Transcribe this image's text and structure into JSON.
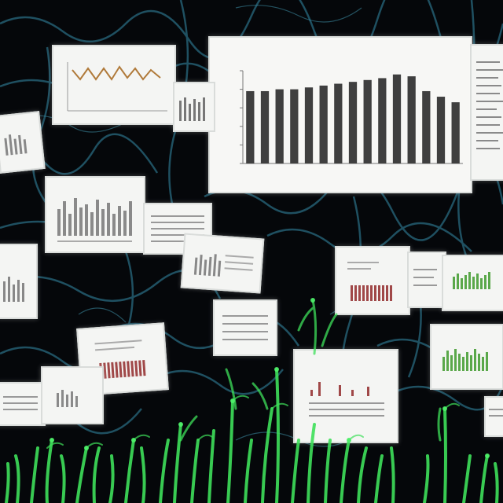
{
  "scene": {
    "background_color": "#05070a",
    "vein_color": "#2a6f86",
    "plant_color": "#3ee05a"
  },
  "main_chart": {
    "title": "",
    "xlabel": "",
    "chart_data": {
      "type": "bar",
      "categories": [
        "",
        "",
        "",
        "",
        "",
        "",
        "",
        "",
        "",
        "",
        "",
        "",
        "",
        "",
        ""
      ],
      "values": [
        78,
        78,
        80,
        80,
        82,
        84,
        86,
        88,
        90,
        92,
        96,
        94,
        78,
        72,
        66
      ],
      "bar_color": "#3f3f3f",
      "ylim": [
        0,
        100
      ]
    }
  },
  "cards": [
    {
      "name": "card-top-left-line-chart",
      "kind": "line",
      "color": "#b07a3a"
    },
    {
      "name": "card-small-bars-1",
      "kind": "bars",
      "color": "#777777"
    },
    {
      "name": "card-left-edge-1",
      "kind": "bars",
      "color": "#888888"
    },
    {
      "name": "card-mid-left-bars",
      "kind": "bars",
      "color": "#8a8a8a"
    },
    {
      "name": "card-mid-table",
      "kind": "table",
      "color": "#999999"
    },
    {
      "name": "card-tilted-bars",
      "kind": "bars",
      "color": "#888888"
    },
    {
      "name": "card-left-edge-2",
      "kind": "bars",
      "color": "#888888"
    },
    {
      "name": "card-red-bars-right",
      "kind": "bars",
      "color": "#a04848"
    },
    {
      "name": "card-green-bars-right",
      "kind": "bars",
      "color": "#5aa84a"
    },
    {
      "name": "card-center-small",
      "kind": "table",
      "color": "#999999"
    },
    {
      "name": "card-red-bars-left",
      "kind": "bars",
      "color": "#a04848"
    },
    {
      "name": "card-bottom-center",
      "kind": "sparse",
      "color": "#a04848"
    },
    {
      "name": "card-green-bars-lower",
      "kind": "bars",
      "color": "#5aa84a"
    },
    {
      "name": "card-bottom-left-1",
      "kind": "table",
      "color": "#999999"
    },
    {
      "name": "card-bottom-left-2",
      "kind": "bars",
      "color": "#8a8a8a"
    },
    {
      "name": "card-right-edge-text",
      "kind": "table",
      "color": "#999999"
    }
  ]
}
